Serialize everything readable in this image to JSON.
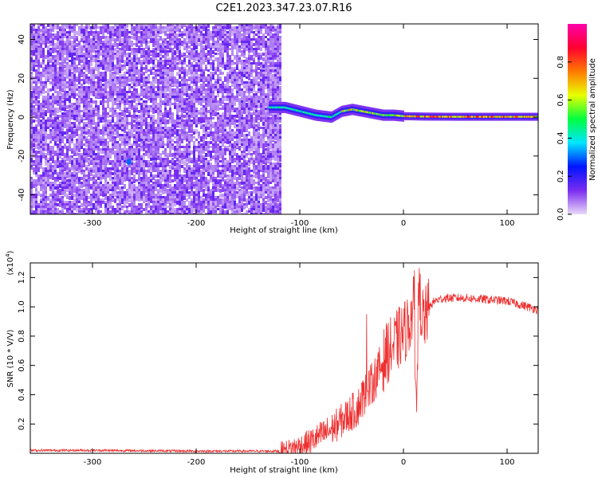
{
  "title": "C2E1.2023.347.23.07.R16",
  "colors": {
    "snr_line": "#ee3030",
    "axis": "#000000",
    "spectrogram_background": "#ffffff"
  },
  "chart_data": [
    {
      "type": "heatmap",
      "xlabel": "Height of straight line (km)",
      "ylabel": "Frequency (Hz)",
      "xlim": [
        -360,
        130
      ],
      "ylim": [
        -50,
        48
      ],
      "xticks": [
        -300,
        -200,
        -100,
        0,
        100
      ],
      "yticks": [
        -40,
        -20,
        0,
        20,
        40
      ],
      "noise_region_x": [
        -360,
        -118
      ],
      "signal_track": {
        "x": [
          -130,
          -115,
          -100,
          -85,
          -70,
          -60,
          -50,
          -40,
          -30,
          -20,
          -10,
          0,
          20,
          50,
          100,
          130
        ],
        "freq_hz": [
          5,
          5,
          3,
          1,
          0,
          3,
          4,
          3,
          2,
          1,
          1,
          0.5,
          0.3,
          0.2,
          0.2,
          0.2
        ]
      },
      "colorbar": {
        "label": "Normalized spectral amplitude",
        "range": [
          0.0,
          1.0
        ],
        "ticks": [
          "0.0",
          "0.2",
          "0.4",
          "0.6",
          "0.8"
        ],
        "stops": [
          "#e9d9f8",
          "#7b2cf0",
          "#0015ff",
          "#00e5ff",
          "#00ff40",
          "#e8ff00",
          "#ff7a00",
          "#ff0030",
          "#ff00aa"
        ]
      }
    },
    {
      "type": "line",
      "xlabel": "Height of straight line (km)",
      "ylabel": "SNR (10 * V/V)",
      "yscale_label": "(x10",
      "yscale_exponent": "4",
      "yscale_close": ")",
      "xlim": [
        -360,
        130
      ],
      "ylim": [
        0,
        1.3
      ],
      "xticks": [
        -300,
        -200,
        -100,
        0,
        100
      ],
      "yticks": [
        "0.2",
        "0.4",
        "0.6",
        "0.8",
        "1.0",
        "1.2"
      ],
      "series": [
        {
          "x": [
            -360,
            -300,
            -200,
            -120,
            -110,
            -100,
            -90,
            -80,
            -70,
            -60,
            -50,
            -45,
            -40,
            -35,
            -30,
            -25,
            -20,
            -15,
            -10,
            -5,
            0,
            5,
            10,
            12,
            15,
            18,
            20,
            25,
            30,
            40,
            60,
            80,
            100,
            120,
            130
          ],
          "values": [
            0.02,
            0.02,
            0.015,
            0.015,
            0.03,
            0.05,
            0.08,
            0.12,
            0.16,
            0.22,
            0.28,
            0.3,
            0.38,
            0.42,
            0.48,
            0.55,
            0.62,
            0.7,
            0.72,
            0.78,
            0.82,
            0.88,
            1.0,
            0.3,
            1.1,
            0.95,
            0.9,
            1.0,
            1.04,
            1.06,
            1.06,
            1.05,
            1.04,
            1.0,
            0.98
          ]
        }
      ]
    }
  ]
}
